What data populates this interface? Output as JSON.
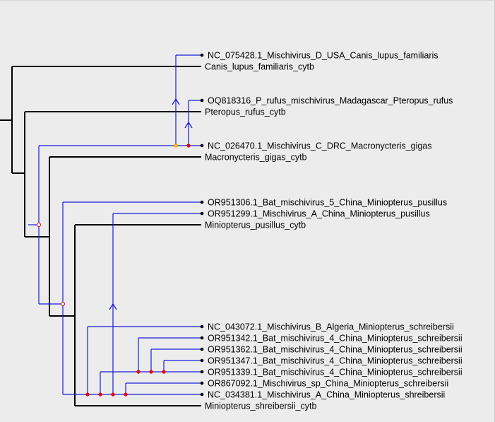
{
  "colors": {
    "host_tree": "#000000",
    "virus_tree": "#1a1adb",
    "event_cospeciation": "#e8000b",
    "event_duplication": "#ffb300",
    "background": "#ececec"
  },
  "labels": {
    "NC_075428": "NC_075428.1_Mischivirus_D_USA_Canis_lupus_familiaris",
    "canis_host": "Canis_lupus_familiaris_cytb",
    "OQ818316": "OQ818316_P_rufus_mischivirus_Madagascar_Pteropus_rufus",
    "pteropus_host": "Pteropus_rufus_cytb",
    "NC_026470": "NC_026470.1_Mischivirus_C_DRC_Macronycteris_gigas",
    "macronycteris_host": "Macronycteris_gigas_cytb",
    "OR951306": "OR951306.1_Bat_mischivirus_5_China_Miniopterus_pusillus",
    "OR951299": "OR951299.1_Mischivirus_A_China_Miniopterus_pusillus",
    "pusillus_host": "Miniopterus_pusillus_cytb",
    "NC_043072": "NC_043072.1_Mischivirus_B_Algeria_Miniopterus_schreibersii",
    "OR951342": "OR951342.1_Bat_mischivirus_4_China_Miniopterus_schreibersii",
    "OR951362": "OR951362.1_Bat_mischivirus_4_China_Miniopterus_schreibersii",
    "OR951347": "OR951347.1_Bat_mischivirus_4_China_Miniopterus_schreibersii",
    "OR951339": "OR951339.1_Bat_mischivirus_4_China_Miniopterus_schreibersii",
    "OR867092": "OR867092.1_Mischivirus_sp_China_Miniopterus_schreibersii",
    "NC_034381": "NC_034381.1_Mischivirus_A_China_Miniopterus_shreibersii",
    "schreibersii_host": "Miniopterus_shreibersii_cytb"
  }
}
